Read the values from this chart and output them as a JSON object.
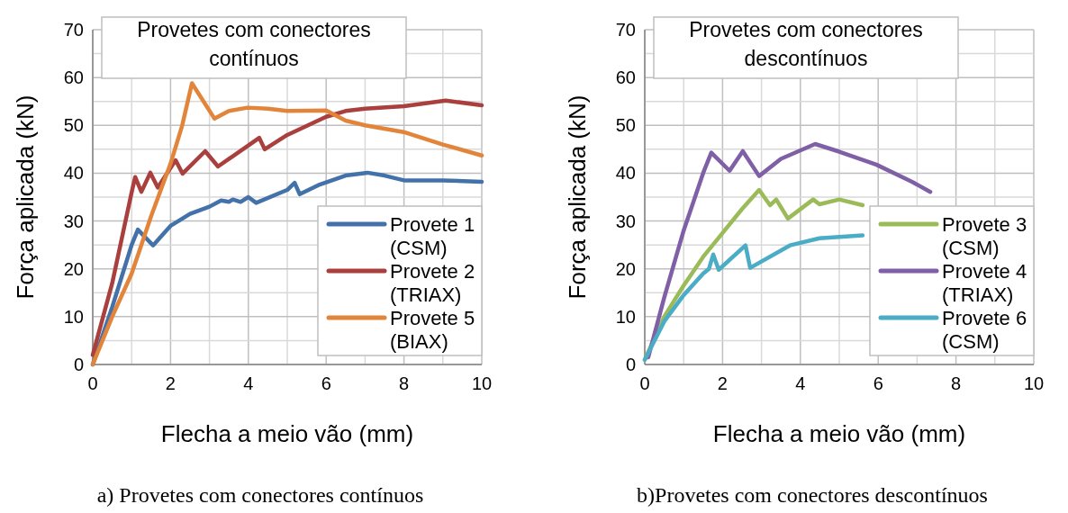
{
  "chart_data": [
    {
      "type": "line",
      "title": "Provetes com conectores contínuos",
      "xlabel": "Flecha a meio vão (mm)",
      "ylabel": "Força aplicada (kN)",
      "annotations": [
        "a) Provetes com conectores contínuos"
      ],
      "xlim": [
        0,
        10
      ],
      "ylim": [
        0,
        70
      ],
      "xticks": [
        0,
        {
          "value": 1,
          "label": null
        },
        2,
        {
          "value": 3,
          "label": null
        },
        4,
        {
          "value": 5,
          "label": null
        },
        6,
        {
          "value": 7,
          "label": null
        },
        8,
        {
          "value": 9,
          "label": null
        },
        10
      ],
      "yticks": [
        0,
        {
          "value": 5,
          "label": null
        },
        10,
        {
          "value": 15,
          "label": null
        },
        20,
        {
          "value": 25,
          "label": null
        },
        30,
        {
          "value": 35,
          "label": null
        },
        40,
        {
          "value": 45,
          "label": null
        },
        50,
        {
          "value": 55,
          "label": null
        },
        60,
        {
          "value": 65,
          "label": null
        },
        70
      ],
      "grid": true,
      "legend": "bottom right",
      "marker": "none",
      "line_style": "solid",
      "series": [
        {
          "name": "Provete 1 (CSM)",
          "color": "#4372aa",
          "x": [
            0,
            0.5,
            1,
            1.16,
            1.55,
            2,
            2.2,
            2.5,
            3,
            3.3,
            3.5,
            3.6,
            3.8,
            4,
            4.2,
            5,
            5.19,
            5.32,
            5.8,
            6.5,
            7.06,
            7.5,
            8,
            9,
            10
          ],
          "values": [
            0,
            12,
            25,
            28.2,
            24.9,
            29,
            30,
            31.5,
            33,
            34.3,
            34,
            34.5,
            34,
            35,
            33.8,
            36.5,
            38,
            35.6,
            37.5,
            39.5,
            40.1,
            39.5,
            38.5,
            38.5,
            38.2
          ]
        },
        {
          "name": "Provete 2 (TRIAX)",
          "color": "#a9403e",
          "x": [
            0,
            0.5,
            1,
            1.09,
            1.25,
            1.48,
            1.67,
            2.13,
            2.31,
            2.89,
            3.22,
            4,
            4.28,
            4.42,
            5,
            6,
            6.5,
            7,
            8,
            9.07,
            10
          ],
          "values": [
            2,
            17,
            36,
            39.2,
            36.1,
            40.1,
            37,
            42.7,
            39.9,
            44.6,
            41.4,
            45.8,
            47.4,
            45,
            48,
            51.8,
            53,
            53.5,
            54,
            55.2,
            54.2
          ]
        },
        {
          "name": "Provete 5 (BIAX)",
          "color": "#e2853a",
          "x": [
            0,
            0.5,
            1,
            1.5,
            2,
            2.3,
            2.55,
            3.13,
            3.5,
            3.98,
            4.5,
            5,
            6,
            6.5,
            7,
            7.99,
            9,
            10
          ],
          "values": [
            0,
            10,
            19,
            31,
            42,
            50,
            58.8,
            51.4,
            53,
            53.7,
            53.5,
            53,
            53.1,
            51,
            50,
            48.6,
            46,
            43.7
          ]
        }
      ]
    },
    {
      "type": "line",
      "title": "Provetes com conectores descontínuos",
      "xlabel": "Flecha a meio vão (mm)",
      "ylabel": "Força aplicada (kN)",
      "annotations": [
        "b)Provetes com conectores descontínuos"
      ],
      "xlim": [
        0,
        10
      ],
      "ylim": [
        0,
        70
      ],
      "xticks": [
        0,
        {
          "value": 1,
          "label": null
        },
        2,
        {
          "value": 3,
          "label": null
        },
        4,
        {
          "value": 5,
          "label": null
        },
        6,
        {
          "value": 7,
          "label": null
        },
        8,
        {
          "value": 9,
          "label": null
        },
        10
      ],
      "yticks": [
        0,
        {
          "value": 5,
          "label": null
        },
        10,
        {
          "value": 15,
          "label": null
        },
        20,
        {
          "value": 25,
          "label": null
        },
        30,
        {
          "value": 35,
          "label": null
        },
        40,
        {
          "value": 45,
          "label": null
        },
        50,
        {
          "value": 55,
          "label": null
        },
        60,
        {
          "value": 65,
          "label": null
        },
        70
      ],
      "grid": true,
      "legend": "bottom right",
      "marker": "none",
      "line_style": "solid",
      "series": [
        {
          "name": "Provete 3 (CSM)",
          "color": "#9bbb59",
          "x": [
            0,
            0.5,
            1,
            1.5,
            2,
            2.5,
            2.94,
            3.22,
            3.38,
            3.68,
            4.33,
            4.49,
            5,
            5.6
          ],
          "values": [
            1,
            10,
            16.5,
            22.5,
            27.5,
            32.5,
            36.5,
            33.3,
            34.5,
            30.5,
            34.5,
            33.5,
            34.5,
            33.3
          ]
        },
        {
          "name": "Provete 4 (TRIAX)",
          "color": "#7f5fa6",
          "x": [
            0.09,
            0.5,
            1,
            1.5,
            1.71,
            2.18,
            2.52,
            2.94,
            3.5,
            4.38,
            5,
            5.95,
            6.87,
            7.34
          ],
          "values": [
            1.5,
            14,
            28,
            40,
            44.3,
            40.5,
            44.6,
            39.4,
            43,
            46.1,
            44.5,
            41.8,
            38.2,
            36.1
          ]
        },
        {
          "name": "Provete 6 (CSM)",
          "color": "#4bacc6",
          "x": [
            0,
            0.5,
            1,
            1.5,
            1.65,
            1.76,
            1.9,
            2.59,
            2.71,
            3.73,
            4.49,
            5.6
          ],
          "values": [
            1,
            9,
            14.5,
            19,
            20,
            23,
            19.8,
            24.9,
            20.2,
            24.9,
            26.4,
            27
          ]
        }
      ]
    }
  ]
}
